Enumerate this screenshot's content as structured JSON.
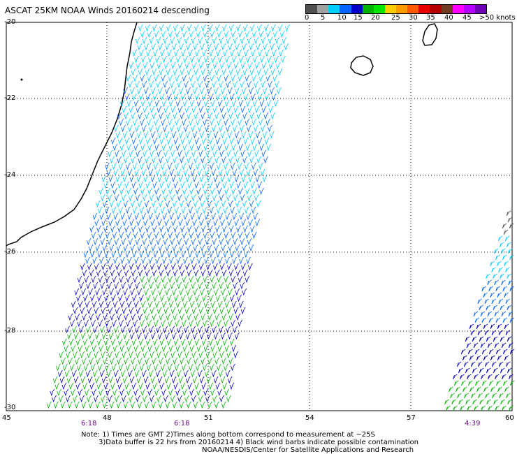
{
  "title": "ASCAT 25KM NOAA Winds 20160214 descending",
  "colorbar": {
    "colors": [
      "#505050",
      "#a0a0a0",
      "#00ccff",
      "#0066ff",
      "#0000c8",
      "#00b400",
      "#00e600",
      "#ffcc00",
      "#ff9900",
      "#ff5a00",
      "#e60000",
      "#b40000",
      "#6e3c1e",
      "#ff00ff",
      "#b400ff",
      "#6e00b4"
    ],
    "labels": [
      "0",
      "5",
      "10",
      "15",
      "20",
      "25",
      "30",
      "35",
      "40",
      "45",
      ">50 knots"
    ]
  },
  "map": {
    "lat_ticks": [
      "-20",
      "-22",
      "-24",
      "-26",
      "-28",
      "-30"
    ],
    "lon_ticks": [
      "45",
      "48",
      "51",
      "54",
      "57",
      "60"
    ],
    "time_labels": [
      "6:18",
      "6:18",
      "4:39"
    ]
  },
  "notes": {
    "line1": "Note: 1) Times are GMT 2)Times along bottom correspond to measurement at ~25S",
    "line2": "3)Data buffer is 22 hrs from 20160214 4) Black wind barbs indicate possible contamination",
    "line3": "NOAA/NESDIS/Center for Satellite Applications and Research"
  }
}
